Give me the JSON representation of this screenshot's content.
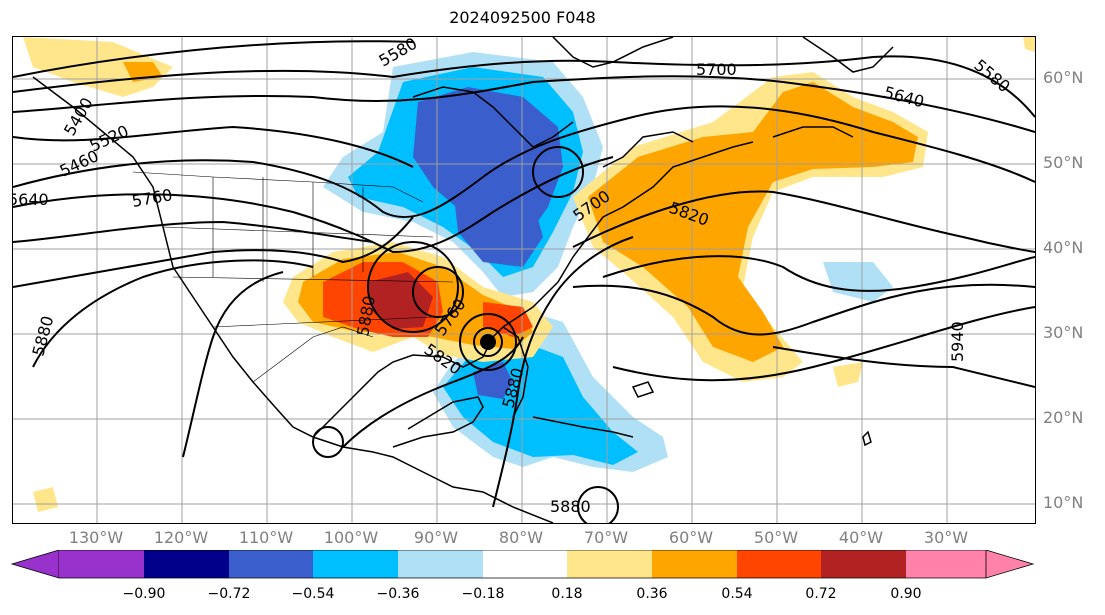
{
  "title": "2024092500 F048",
  "lat_labels": [
    "60°N",
    "50°N",
    "40°N",
    "30°N",
    "20°N",
    "10°N"
  ],
  "lon_labels": [
    "130°W",
    "120°W",
    "110°W",
    "100°W",
    "90°W",
    "80°W",
    "70°W",
    "60°W",
    "50°W",
    "40°W",
    "30°W"
  ],
  "colorbar": {
    "ticks": [
      "−0.90",
      "−0.72",
      "−0.54",
      "−0.36",
      "−0.18",
      "0.18",
      "0.36",
      "0.54",
      "0.72",
      "0.90"
    ],
    "colors": [
      "#9932cc",
      "#00008b",
      "#3a5fcd",
      "#00bfff",
      "#b0e0f6",
      "#ffffff",
      "#ffe68a",
      "#ffa500",
      "#ff4500",
      "#b22222",
      "#ff82ab"
    ]
  },
  "contour_labels": [
    "5580",
    "5700",
    "5640",
    "5580",
    "5520",
    "5460",
    "5400",
    "5760",
    "5640",
    "5820",
    "5700",
    "5880",
    "5760",
    "5820",
    "5880",
    "5880",
    "5880",
    "5940"
  ],
  "storm_marker": "storm-center",
  "contour_color": "#000000"
}
